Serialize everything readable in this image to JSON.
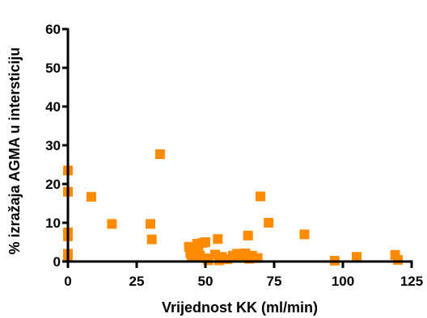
{
  "chart_data": {
    "type": "scatter",
    "xlabel": "Vrijednost KK (ml/min)",
    "ylabel": "% izražaja AGMA u intersticiju",
    "xlim": [
      0,
      125
    ],
    "ylim": [
      0,
      60
    ],
    "x_ticks": [
      0,
      25,
      50,
      75,
      100,
      125
    ],
    "y_ticks": [
      0,
      10,
      20,
      30,
      40,
      50,
      60
    ],
    "grid": false,
    "marker": "square",
    "marker_color": "#ff8c00",
    "points": [
      {
        "x": 0,
        "y": 23.5
      },
      {
        "x": 0,
        "y": 18
      },
      {
        "x": 0,
        "y": 7.5
      },
      {
        "x": 0,
        "y": 6.5
      },
      {
        "x": 0,
        "y": 2
      },
      {
        "x": 0,
        "y": 1
      },
      {
        "x": 8.5,
        "y": 16.7
      },
      {
        "x": 16,
        "y": 9.7
      },
      {
        "x": 30,
        "y": 9.7
      },
      {
        "x": 30.5,
        "y": 5.7
      },
      {
        "x": 33.5,
        "y": 27.7
      },
      {
        "x": 44,
        "y": 3.8
      },
      {
        "x": 44.5,
        "y": 2.2
      },
      {
        "x": 45,
        "y": 1.2
      },
      {
        "x": 46,
        "y": 3.4
      },
      {
        "x": 47,
        "y": 4.6
      },
      {
        "x": 47.5,
        "y": 2.5
      },
      {
        "x": 48,
        "y": 1.5
      },
      {
        "x": 49,
        "y": 4.8
      },
      {
        "x": 50,
        "y": 5
      },
      {
        "x": 50.5,
        "y": 0.8
      },
      {
        "x": 51,
        "y": 0.3
      },
      {
        "x": 53.5,
        "y": 1.8
      },
      {
        "x": 54.5,
        "y": 5.8
      },
      {
        "x": 55,
        "y": 0.3
      },
      {
        "x": 56,
        "y": 1.2
      },
      {
        "x": 58,
        "y": 0.6
      },
      {
        "x": 60,
        "y": 1.5
      },
      {
        "x": 61.5,
        "y": 2
      },
      {
        "x": 63,
        "y": 1
      },
      {
        "x": 64.5,
        "y": 2.1
      },
      {
        "x": 65.5,
        "y": 6.7
      },
      {
        "x": 66,
        "y": 0.7
      },
      {
        "x": 67,
        "y": 1.5
      },
      {
        "x": 69,
        "y": 0.9
      },
      {
        "x": 70,
        "y": 16.8
      },
      {
        "x": 73,
        "y": 10
      },
      {
        "x": 86,
        "y": 7
      },
      {
        "x": 97,
        "y": 0.2
      },
      {
        "x": 105,
        "y": 1.2
      },
      {
        "x": 119,
        "y": 1.7
      },
      {
        "x": 120,
        "y": 0.4
      }
    ]
  }
}
